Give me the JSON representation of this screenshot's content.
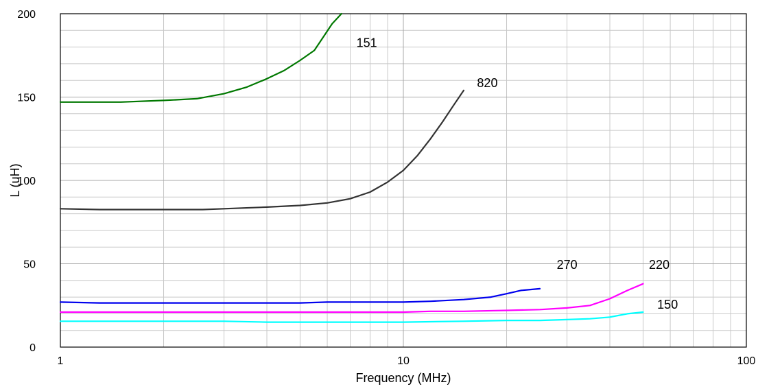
{
  "chart_data": {
    "type": "line",
    "title": "",
    "xlabel": "Frequency (MHz)",
    "ylabel": "L (uH)",
    "x_scale": "log",
    "xlim": [
      1,
      100
    ],
    "ylim": [
      0,
      200
    ],
    "grid": true,
    "legend": "none",
    "x_ticks": [
      {
        "value": 1,
        "label": "1"
      },
      {
        "value": 10,
        "label": "10"
      },
      {
        "value": 100,
        "label": "100"
      }
    ],
    "y_ticks": [
      {
        "value": 0,
        "label": "0"
      },
      {
        "value": 50,
        "label": "50"
      },
      {
        "value": 100,
        "label": "100"
      },
      {
        "value": 150,
        "label": "150"
      },
      {
        "value": 200,
        "label": "200"
      }
    ],
    "series": [
      {
        "name": "151",
        "color": "#007800",
        "x": [
          1,
          1.5,
          2,
          2.5,
          3,
          3.5,
          4,
          4.5,
          5,
          5.5,
          5.8,
          6.2,
          6.6
        ],
        "y": [
          147,
          147,
          148,
          149,
          152,
          156,
          161,
          166,
          172,
          178,
          185,
          194,
          200
        ]
      },
      {
        "name": "820",
        "color": "#333333",
        "x": [
          1,
          1.3,
          2,
          2.6,
          3,
          4,
          5,
          6,
          7,
          8,
          9,
          10,
          11,
          12,
          13,
          14,
          15
        ],
        "y": [
          83,
          82.5,
          82.5,
          82.5,
          83,
          84,
          85,
          86.5,
          89,
          93,
          99,
          106,
          115,
          125,
          135,
          145,
          154
        ]
      },
      {
        "name": "270",
        "color": "#0000ee",
        "x": [
          1,
          1.3,
          2,
          3,
          4,
          5,
          6,
          8,
          10,
          12,
          15,
          18,
          20,
          22,
          25
        ],
        "y": [
          27,
          26.5,
          26.5,
          26.5,
          26.5,
          26.5,
          27,
          27,
          27,
          27.5,
          28.5,
          30,
          32,
          34,
          35
        ]
      },
      {
        "name": "220",
        "color": "#ff00ff",
        "x": [
          1,
          2,
          4,
          6,
          10,
          12,
          15,
          20,
          25,
          30,
          35,
          40,
          45,
          50
        ],
        "y": [
          21,
          21,
          21,
          21,
          21,
          21.5,
          21.5,
          22,
          22.5,
          23.5,
          25,
          29,
          34,
          38
        ]
      },
      {
        "name": "150",
        "color": "#00ffff",
        "x": [
          1,
          2,
          3,
          4,
          5,
          7,
          10,
          15,
          20,
          25,
          30,
          35,
          40,
          45,
          50
        ],
        "y": [
          15.5,
          15.5,
          15.5,
          15,
          15,
          15,
          15,
          15.5,
          16,
          16,
          16.5,
          17,
          18,
          20,
          21
        ]
      }
    ],
    "annotations": [
      {
        "text": "151",
        "x": 7.3,
        "y": 180
      },
      {
        "text": "820",
        "x": 16.4,
        "y": 156
      },
      {
        "text": "270",
        "x": 28,
        "y": 47
      },
      {
        "text": "220",
        "x": 52,
        "y": 47
      },
      {
        "text": "150",
        "x": 55,
        "y": 23
      }
    ]
  }
}
